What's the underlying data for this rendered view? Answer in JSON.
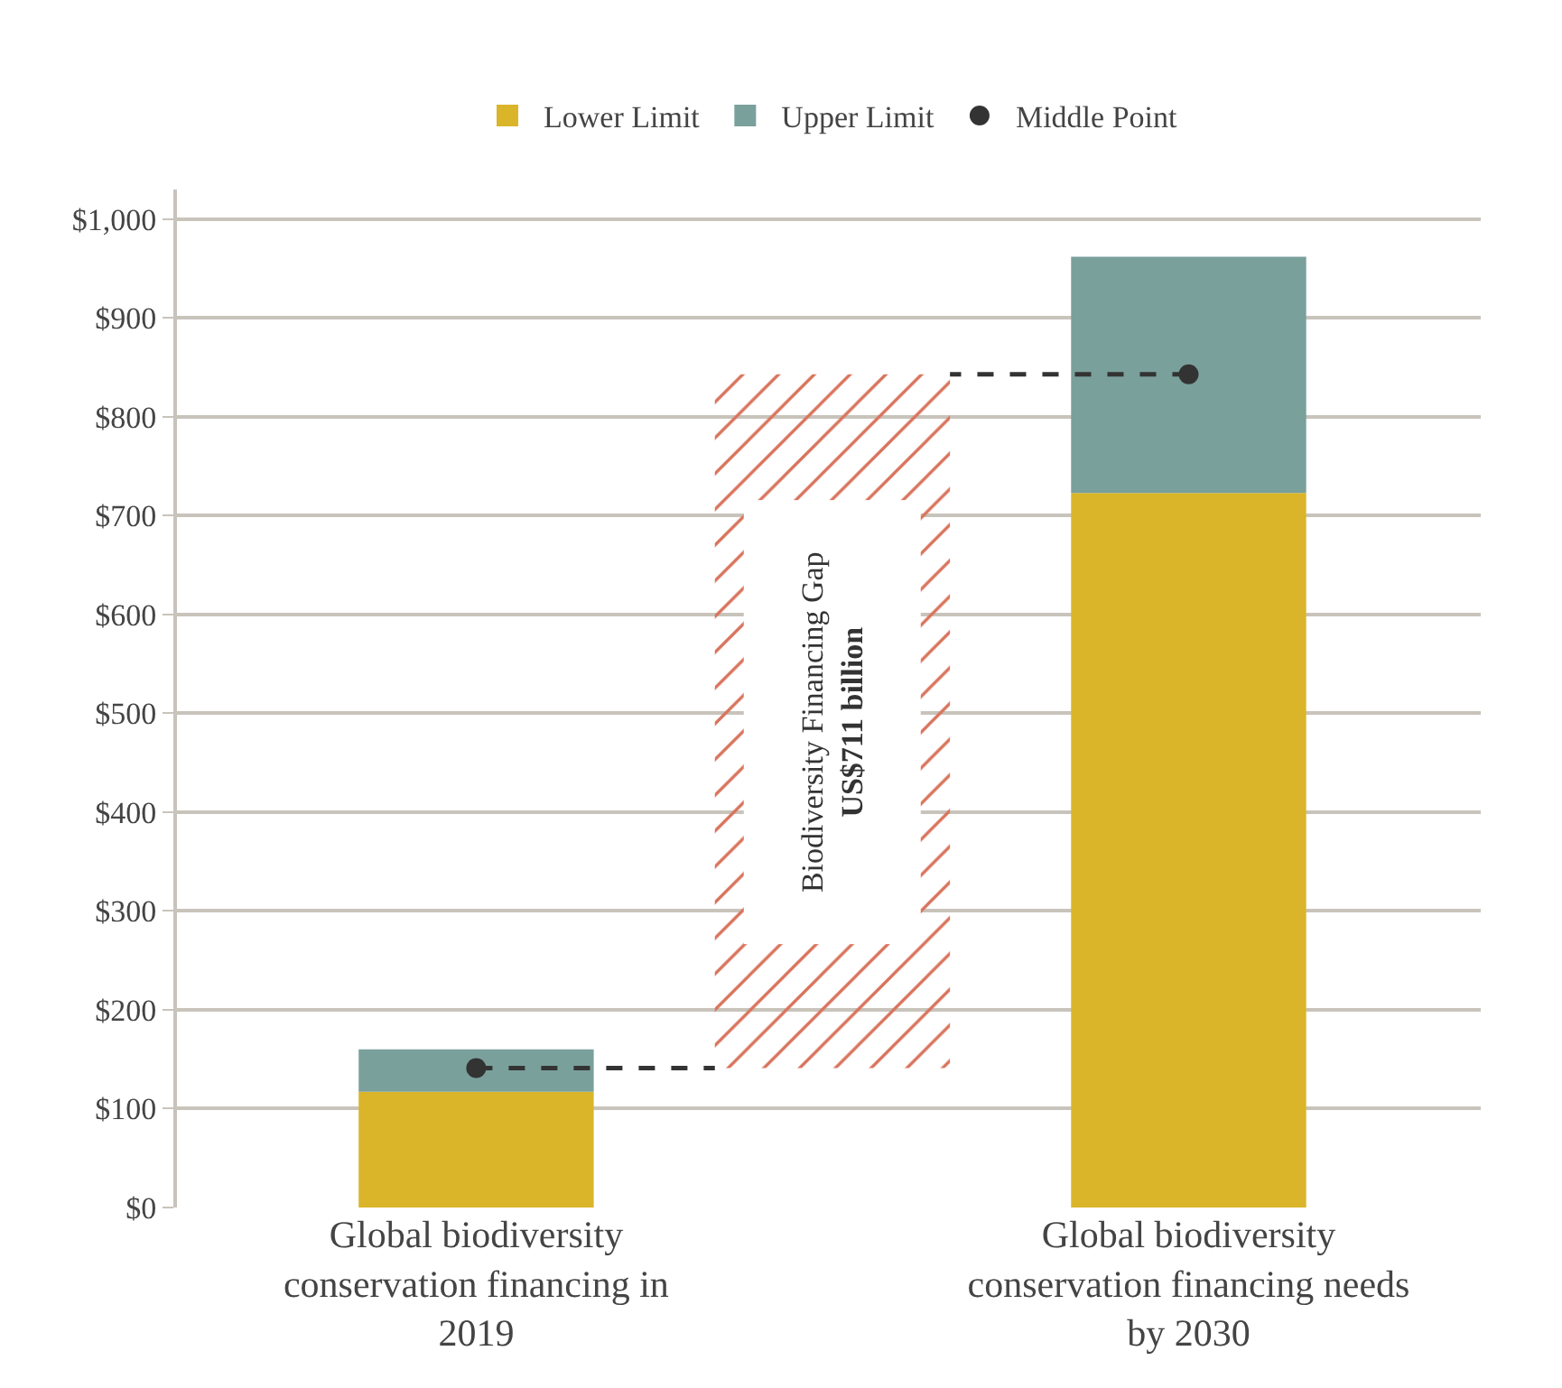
{
  "chart_data": {
    "type": "bar",
    "stacked": true,
    "categories": [
      "Global biodiversity conservation financing in 2019",
      "Global biodiversity conservation financing needs by 2030"
    ],
    "series": [
      {
        "name": "Lower Limit",
        "color": "#dab52a",
        "values": [
          117,
          723
        ]
      },
      {
        "name": "Upper Limit",
        "color": "#7aa09c",
        "values": [
          43,
          239
        ]
      },
      {
        "name": "Middle Point",
        "type": "scatter",
        "marker": "circle",
        "color": "#333333",
        "values": [
          141,
          843
        ]
      }
    ],
    "bands": [
      {
        "axis": "y",
        "from": 141,
        "to": 843,
        "label": "Biodiversity Financing Gap\nUS$711 billion",
        "color": "#d9735c"
      }
    ],
    "ylim": [
      0,
      1030
    ],
    "yticks": [
      {
        "value": 0,
        "label": "$0"
      },
      {
        "value": 100,
        "label": "$100"
      },
      {
        "value": 200,
        "label": "$200"
      },
      {
        "value": 300,
        "label": "$300"
      },
      {
        "value": 400,
        "label": "$400"
      },
      {
        "value": 500,
        "label": "$500"
      },
      {
        "value": 600,
        "label": "$600"
      },
      {
        "value": 700,
        "label": "$700"
      },
      {
        "value": 800,
        "label": "$800"
      },
      {
        "value": 900,
        "label": "$900"
      },
      {
        "value": 1000,
        "label": "$1,000"
      }
    ],
    "grid": "y",
    "legend": "top"
  }
}
